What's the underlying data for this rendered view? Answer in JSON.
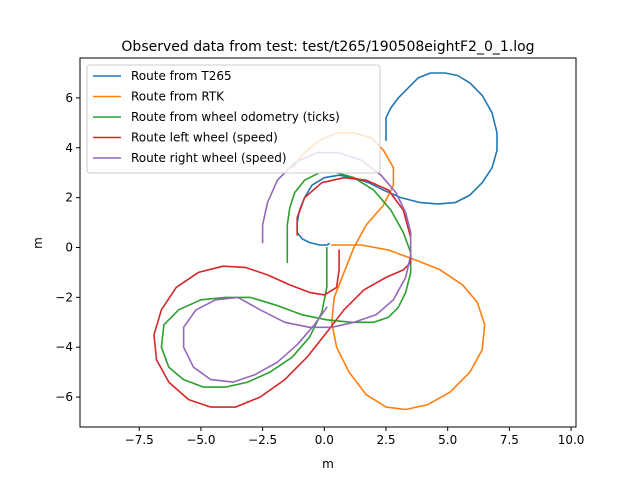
{
  "chart_data": {
    "type": "line",
    "title": "Observed data from test: test/t265/190508eightF2_0_1.log",
    "xlabel": "m",
    "ylabel": "m",
    "xlim": [
      -9.9,
      10.2
    ],
    "ylim": [
      -7.2,
      7.6
    ],
    "x_ticks": [
      -7.5,
      -5.0,
      -2.5,
      0.0,
      2.5,
      5.0,
      7.5,
      10.0
    ],
    "x_tick_labels": [
      "−7.5",
      "−5.0",
      "−2.5",
      "0.0",
      "2.5",
      "5.0",
      "7.5",
      "10.0"
    ],
    "y_ticks": [
      -6,
      -4,
      -2,
      0,
      2,
      4,
      6
    ],
    "y_tick_labels": [
      "−6",
      "−4",
      "−2",
      "0",
      "2",
      "4",
      "6"
    ],
    "grid": false,
    "legend_position": "upper-left",
    "series": [
      {
        "name": "Route from T265",
        "color": "#1f77b4",
        "points": [
          [
            2.5,
            4.3
          ],
          [
            2.5,
            4.9
          ],
          [
            2.5,
            5.2
          ],
          [
            2.7,
            5.6
          ],
          [
            3.0,
            6.0
          ],
          [
            3.4,
            6.4
          ],
          [
            3.8,
            6.8
          ],
          [
            4.3,
            7.0
          ],
          [
            4.9,
            7.0
          ],
          [
            5.4,
            6.9
          ],
          [
            5.9,
            6.6
          ],
          [
            6.4,
            6.1
          ],
          [
            6.8,
            5.4
          ],
          [
            7.0,
            4.6
          ],
          [
            7.0,
            3.9
          ],
          [
            6.8,
            3.2
          ],
          [
            6.4,
            2.6
          ],
          [
            5.9,
            2.1
          ],
          [
            5.3,
            1.8
          ],
          [
            4.6,
            1.75
          ],
          [
            3.9,
            1.8
          ],
          [
            3.1,
            2.0
          ],
          [
            2.4,
            2.3
          ],
          [
            1.8,
            2.6
          ],
          [
            1.2,
            2.8
          ],
          [
            0.6,
            2.9
          ],
          [
            0.0,
            2.8
          ],
          [
            -0.5,
            2.5
          ],
          [
            -0.8,
            2.0
          ],
          [
            -1.0,
            1.5
          ],
          [
            -1.1,
            1.0
          ],
          [
            -1.1,
            0.6
          ],
          [
            -0.9,
            0.35
          ],
          [
            -0.6,
            0.2
          ],
          [
            -0.2,
            0.1
          ],
          [
            0.1,
            0.1
          ],
          [
            0.2,
            0.15
          ]
        ]
      },
      {
        "name": "Route from RTK",
        "color": "#ff7f0e",
        "points": [
          [
            -1.3,
            3.2
          ],
          [
            -0.8,
            3.8
          ],
          [
            -0.2,
            4.3
          ],
          [
            0.5,
            4.6
          ],
          [
            1.2,
            4.6
          ],
          [
            1.9,
            4.4
          ],
          [
            2.4,
            3.9
          ],
          [
            2.8,
            3.2
          ],
          [
            2.8,
            2.5
          ],
          [
            2.4,
            1.7
          ],
          [
            1.7,
            0.9
          ],
          [
            1.2,
            0.0
          ],
          [
            0.8,
            -1.0
          ],
          [
            0.4,
            -2.0
          ],
          [
            0.3,
            -3.0
          ],
          [
            0.5,
            -4.0
          ],
          [
            1.0,
            -5.0
          ],
          [
            1.7,
            -5.9
          ],
          [
            2.5,
            -6.4
          ],
          [
            3.3,
            -6.5
          ],
          [
            4.2,
            -6.3
          ],
          [
            5.1,
            -5.8
          ],
          [
            5.9,
            -5.0
          ],
          [
            6.4,
            -4.1
          ],
          [
            6.5,
            -3.1
          ],
          [
            6.2,
            -2.2
          ],
          [
            5.6,
            -1.5
          ],
          [
            4.7,
            -0.9
          ],
          [
            3.7,
            -0.5
          ],
          [
            2.6,
            -0.1
          ],
          [
            1.5,
            0.1
          ],
          [
            0.6,
            0.1
          ],
          [
            0.3,
            0.1
          ]
        ]
      },
      {
        "name": "Route from wheel odometry (ticks)",
        "color": "#2ca02c",
        "points": [
          [
            -1.5,
            -0.6
          ],
          [
            -1.5,
            0.1
          ],
          [
            -1.5,
            0.9
          ],
          [
            -1.4,
            1.6
          ],
          [
            -1.2,
            2.2
          ],
          [
            -0.8,
            2.7
          ],
          [
            -0.2,
            3.0
          ],
          [
            0.5,
            3.0
          ],
          [
            1.2,
            2.8
          ],
          [
            2.0,
            2.3
          ],
          [
            2.7,
            1.5
          ],
          [
            3.2,
            0.6
          ],
          [
            3.5,
            -0.2
          ],
          [
            3.5,
            -1.0
          ],
          [
            3.3,
            -1.8
          ],
          [
            3.0,
            -2.4
          ],
          [
            2.6,
            -2.8
          ],
          [
            2.0,
            -3.0
          ],
          [
            1.1,
            -3.0
          ],
          [
            0.1,
            -2.9
          ],
          [
            -0.9,
            -2.7
          ],
          [
            -2.0,
            -2.3
          ],
          [
            -3.0,
            -2.0
          ],
          [
            -4.0,
            -2.0
          ],
          [
            -5.0,
            -2.1
          ],
          [
            -5.9,
            -2.5
          ],
          [
            -6.5,
            -3.1
          ],
          [
            -6.6,
            -4.0
          ],
          [
            -6.3,
            -4.8
          ],
          [
            -5.7,
            -5.3
          ],
          [
            -4.9,
            -5.6
          ],
          [
            -4.0,
            -5.6
          ],
          [
            -3.1,
            -5.4
          ],
          [
            -2.2,
            -5.0
          ],
          [
            -1.3,
            -4.4
          ],
          [
            -0.6,
            -3.6
          ],
          [
            -0.1,
            -2.6
          ],
          [
            0.1,
            -1.6
          ],
          [
            0.1,
            -0.6
          ],
          [
            0.1,
            0.0
          ]
        ]
      },
      {
        "name": "Route left wheel (speed)",
        "color": "#d62728",
        "points": [
          [
            0.6,
            -0.1
          ],
          [
            0.6,
            -0.9
          ],
          [
            0.5,
            -1.6
          ],
          [
            0.0,
            -1.9
          ],
          [
            -0.6,
            -1.8
          ],
          [
            -1.4,
            -1.5
          ],
          [
            -2.3,
            -1.1
          ],
          [
            -3.2,
            -0.8
          ],
          [
            -4.1,
            -0.75
          ],
          [
            -5.1,
            -1.0
          ],
          [
            -6.0,
            -1.6
          ],
          [
            -6.6,
            -2.5
          ],
          [
            -6.9,
            -3.5
          ],
          [
            -6.8,
            -4.5
          ],
          [
            -6.3,
            -5.4
          ],
          [
            -5.5,
            -6.1
          ],
          [
            -4.6,
            -6.4
          ],
          [
            -3.6,
            -6.4
          ],
          [
            -2.6,
            -6.0
          ],
          [
            -1.6,
            -5.3
          ],
          [
            -0.7,
            -4.4
          ],
          [
            0.1,
            -3.4
          ],
          [
            0.8,
            -2.5
          ],
          [
            1.6,
            -1.7
          ],
          [
            2.5,
            -1.2
          ],
          [
            3.2,
            -0.9
          ],
          [
            3.5,
            -0.6
          ],
          [
            3.5,
            0.4
          ],
          [
            3.2,
            1.5
          ],
          [
            2.6,
            2.3
          ],
          [
            1.7,
            2.7
          ],
          [
            0.8,
            2.8
          ],
          [
            -0.1,
            2.6
          ],
          [
            -0.8,
            2.0
          ],
          [
            -1.1,
            1.2
          ],
          [
            -1.1,
            0.5
          ]
        ]
      },
      {
        "name": "Route right wheel (speed)",
        "color": "#9467bd",
        "points": [
          [
            -2.5,
            0.2
          ],
          [
            -2.5,
            0.9
          ],
          [
            -2.3,
            1.8
          ],
          [
            -1.9,
            2.7
          ],
          [
            -1.2,
            3.4
          ],
          [
            -0.3,
            3.8
          ],
          [
            0.6,
            3.8
          ],
          [
            1.5,
            3.5
          ],
          [
            2.3,
            2.9
          ],
          [
            2.9,
            2.2
          ],
          [
            3.3,
            1.4
          ],
          [
            3.5,
            0.6
          ],
          [
            3.5,
            -0.3
          ],
          [
            3.3,
            -1.2
          ],
          [
            2.8,
            -2.1
          ],
          [
            2.1,
            -2.7
          ],
          [
            1.2,
            -3.0
          ],
          [
            0.3,
            -3.2
          ],
          [
            -0.6,
            -3.2
          ],
          [
            -1.6,
            -3.0
          ],
          [
            -2.6,
            -2.5
          ],
          [
            -3.5,
            -2.0
          ],
          [
            -4.4,
            -2.1
          ],
          [
            -5.2,
            -2.5
          ],
          [
            -5.7,
            -3.2
          ],
          [
            -5.7,
            -4.0
          ],
          [
            -5.3,
            -4.8
          ],
          [
            -4.6,
            -5.3
          ],
          [
            -3.7,
            -5.4
          ],
          [
            -2.8,
            -5.1
          ],
          [
            -1.9,
            -4.6
          ],
          [
            -1.1,
            -3.9
          ],
          [
            -0.4,
            -3.1
          ],
          [
            0.1,
            -2.4
          ]
        ]
      }
    ]
  }
}
